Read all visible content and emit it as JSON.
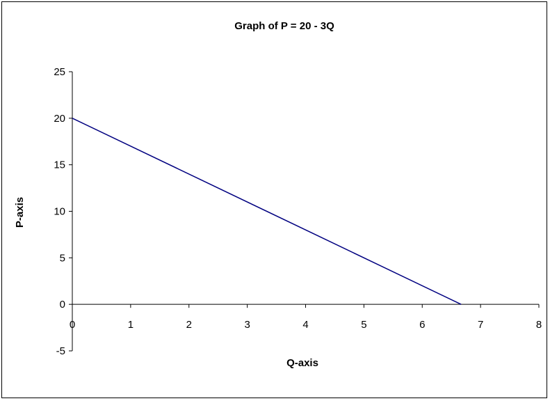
{
  "chart_data": {
    "type": "line",
    "title": "Graph of P = 20 - 3Q",
    "xlabel": "Q-axis",
    "ylabel": "P-axis",
    "xlim": [
      0,
      8
    ],
    "ylim": [
      -5,
      25
    ],
    "x_ticks": [
      "0",
      "1",
      "2",
      "3",
      "4",
      "5",
      "6",
      "7",
      "8"
    ],
    "y_ticks": [
      "25",
      "20",
      "15",
      "10",
      "5",
      "0",
      "-5"
    ],
    "grid": false,
    "legend": "none",
    "series": [
      {
        "color": "#000080",
        "x": [
          0,
          6.667
        ],
        "y": [
          20,
          0
        ]
      }
    ]
  }
}
